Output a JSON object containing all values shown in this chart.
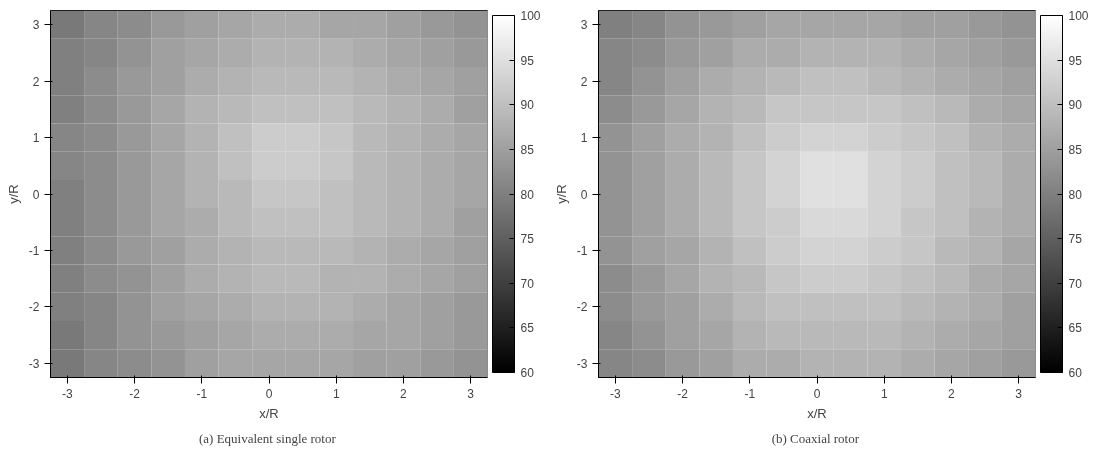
{
  "chart_data": [
    {
      "type": "heatmap",
      "xlabel": "x/R",
      "ylabel": "y/R",
      "annotations": [
        "(a)  Equivalent single rotor"
      ],
      "categories": [
        "-3",
        null,
        "-2",
        null,
        "-1",
        null,
        "0",
        null,
        "1",
        null,
        "2",
        null,
        "3"
      ],
      "y_categories": [
        "3",
        null,
        "2",
        null,
        "1",
        null,
        "0",
        null,
        "-1",
        null,
        "-2",
        null,
        "-3"
      ],
      "clim": [
        60,
        100
      ],
      "cticks": [
        60,
        65,
        70,
        75,
        80,
        85,
        90,
        95,
        100
      ],
      "cells": [
        [
          79,
          81,
          82,
          84,
          85,
          86,
          87,
          87,
          86,
          86,
          85,
          84,
          83
        ],
        [
          80,
          81,
          83,
          85,
          86,
          87,
          88,
          88,
          88,
          87,
          86,
          85,
          84
        ],
        [
          80,
          82,
          84,
          85,
          87,
          88,
          89,
          89,
          89,
          88,
          87,
          86,
          85
        ],
        [
          80,
          82,
          84,
          86,
          88,
          89,
          90,
          90,
          90,
          89,
          88,
          87,
          85
        ],
        [
          81,
          82,
          84,
          86,
          88,
          90,
          92,
          92,
          91,
          89,
          88,
          87,
          86
        ],
        [
          81,
          82,
          84,
          86,
          88,
          90,
          92,
          92,
          91,
          89,
          88,
          87,
          86
        ],
        [
          80,
          82,
          84,
          86,
          88,
          89,
          91,
          91,
          90,
          89,
          88,
          87,
          86
        ],
        [
          80,
          82,
          84,
          86,
          87,
          89,
          90,
          90,
          90,
          89,
          88,
          87,
          85
        ],
        [
          80,
          82,
          84,
          85,
          87,
          88,
          89,
          89,
          89,
          88,
          87,
          86,
          85
        ],
        [
          80,
          82,
          83,
          85,
          87,
          88,
          89,
          89,
          88,
          88,
          87,
          86,
          85
        ],
        [
          80,
          81,
          83,
          85,
          86,
          87,
          88,
          88,
          88,
          87,
          86,
          85,
          84
        ],
        [
          79,
          81,
          83,
          84,
          85,
          86,
          87,
          87,
          87,
          86,
          86,
          85,
          84
        ],
        [
          79,
          81,
          82,
          83,
          85,
          86,
          86,
          86,
          86,
          85,
          85,
          84,
          83
        ]
      ]
    },
    {
      "type": "heatmap",
      "xlabel": "x/R",
      "ylabel": "y/R",
      "annotations": [
        "(b)  Coaxial rotor"
      ],
      "categories": [
        "-3",
        null,
        "-2",
        null,
        "-1",
        null,
        "0",
        null,
        "1",
        null,
        "2",
        null,
        "3"
      ],
      "y_categories": [
        "3",
        null,
        "2",
        null,
        "1",
        null,
        "0",
        null,
        "-1",
        null,
        "-2",
        null,
        "-3"
      ],
      "clim": [
        60,
        100
      ],
      "cticks": [
        60,
        65,
        70,
        75,
        80,
        85,
        90,
        95,
        100
      ],
      "cells": [
        [
          80,
          81,
          83,
          84,
          85,
          86,
          86,
          86,
          86,
          85,
          85,
          84,
          83
        ],
        [
          81,
          82,
          84,
          85,
          87,
          87,
          88,
          88,
          88,
          87,
          86,
          85,
          84
        ],
        [
          81,
          83,
          85,
          87,
          88,
          89,
          90,
          90,
          89,
          88,
          87,
          86,
          85
        ],
        [
          82,
          84,
          86,
          88,
          89,
          91,
          91,
          91,
          91,
          90,
          89,
          87,
          86
        ],
        [
          83,
          85,
          87,
          88,
          90,
          92,
          93,
          93,
          92,
          91,
          90,
          88,
          87
        ],
        [
          83,
          85,
          87,
          89,
          91,
          93,
          95,
          95,
          93,
          92,
          90,
          89,
          87
        ],
        [
          83,
          85,
          87,
          89,
          91,
          93,
          95,
          95,
          93,
          92,
          90,
          89,
          87
        ],
        [
          83,
          85,
          87,
          89,
          91,
          92,
          94,
          94,
          93,
          91,
          90,
          88,
          87
        ],
        [
          83,
          85,
          86,
          88,
          90,
          92,
          93,
          93,
          92,
          91,
          89,
          88,
          86
        ],
        [
          82,
          84,
          86,
          88,
          89,
          91,
          92,
          92,
          91,
          90,
          89,
          87,
          86
        ],
        [
          82,
          84,
          85,
          87,
          89,
          90,
          90,
          90,
          90,
          89,
          88,
          87,
          85
        ],
        [
          81,
          83,
          85,
          86,
          88,
          89,
          89,
          89,
          89,
          88,
          87,
          86,
          85
        ],
        [
          81,
          82,
          84,
          85,
          87,
          87,
          88,
          88,
          88,
          87,
          86,
          85,
          84
        ]
      ]
    }
  ]
}
